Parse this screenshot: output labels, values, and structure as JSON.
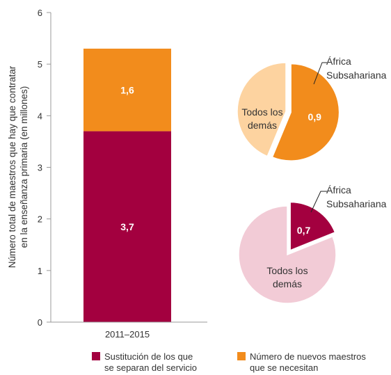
{
  "chart_data": [
    {
      "type": "bar",
      "stacked": true,
      "categories": [
        "2011–2015"
      ],
      "ylabel_lines": [
        "Número total de maestros que hay que contratar",
        "en la enseñanza primaria (en millones)"
      ],
      "ylim": [
        0,
        6
      ],
      "yticks": [
        "0",
        "1",
        "2",
        "3",
        "4",
        "5",
        "6"
      ],
      "series": [
        {
          "name": "Sustitución de los que se separan del servicio",
          "values": [
            3.7
          ],
          "label": "3,7",
          "color": "#A3003F"
        },
        {
          "name": "Número de nuevos maestros que se necesitan",
          "values": [
            1.6
          ],
          "label": "1,6",
          "color": "#F28C1C"
        }
      ]
    },
    {
      "type": "pie",
      "slices": [
        {
          "name": "África Subsahariana",
          "value": 0.9,
          "label": "0,9",
          "color": "#F28C1C"
        },
        {
          "name": "Todos los demás",
          "value": 0.7,
          "color": "#FDD3A0"
        }
      ],
      "labels": {
        "highlight_lines": [
          "África",
          "Subsahariana"
        ],
        "other_lines": [
          "Todos los",
          "demás"
        ],
        "value": "0,9"
      }
    },
    {
      "type": "pie",
      "slices": [
        {
          "name": "África Subsahariana",
          "value": 0.7,
          "label": "0,7",
          "color": "#A3003F"
        },
        {
          "name": "Todos los demás",
          "value": 3.0,
          "color": "#F2CBD6"
        }
      ],
      "labels": {
        "highlight_lines": [
          "África",
          "Subsahariana"
        ],
        "other_lines": [
          "Todos los",
          "demás"
        ],
        "value": "0,7"
      }
    }
  ],
  "legend": [
    {
      "lines": [
        "Sustitución de los que",
        "se separan del servicio"
      ],
      "color": "#A3003F"
    },
    {
      "lines": [
        "Número de nuevos maestros",
        "que se necesitan"
      ],
      "color": "#F28C1C"
    }
  ]
}
